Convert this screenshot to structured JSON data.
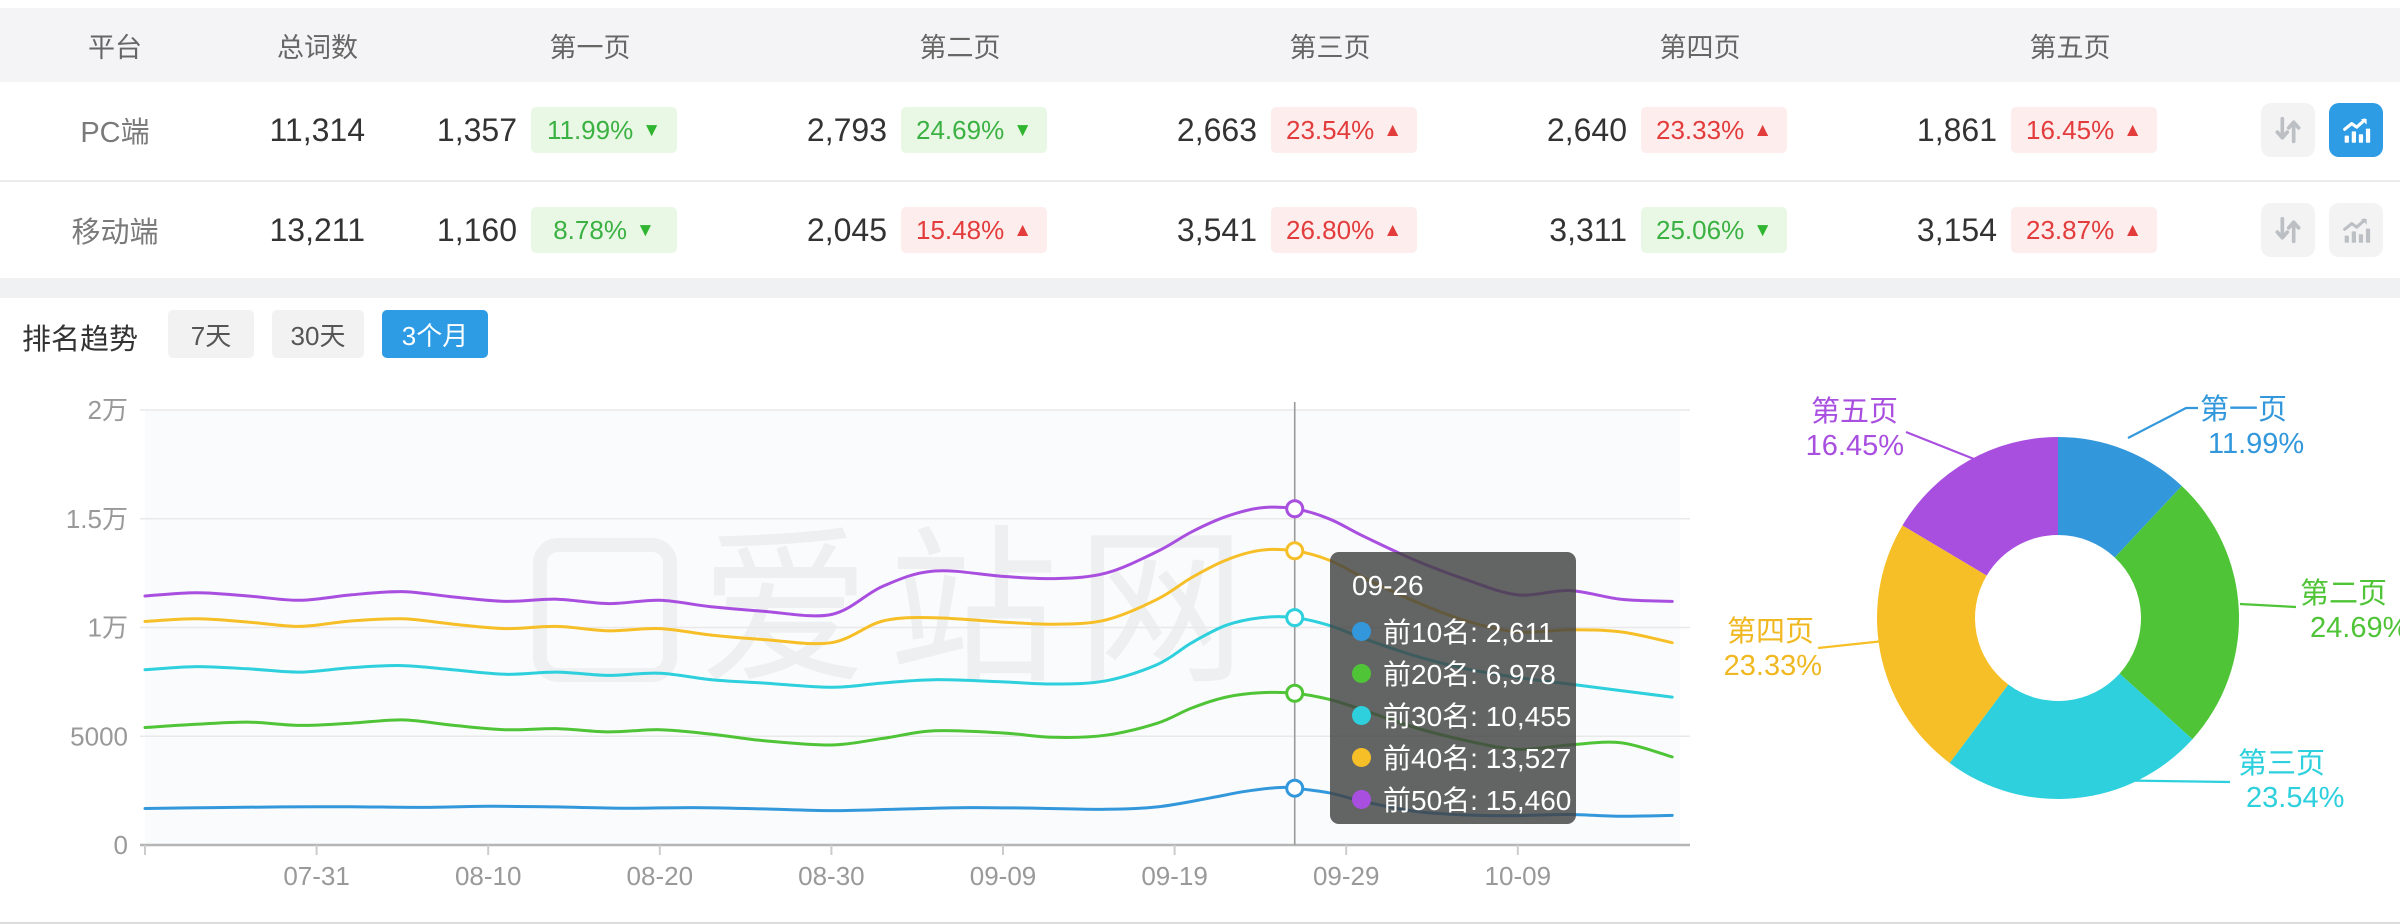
{
  "table": {
    "columns": [
      "平台",
      "总词数",
      "第一页",
      "第二页",
      "第三页",
      "第四页",
      "第五页"
    ],
    "rows": [
      {
        "platform": "PC端",
        "total": "11,314",
        "selected": true,
        "pages": [
          {
            "count": "1,357",
            "pct": "11.99%",
            "arrow": "▼",
            "trend": "down"
          },
          {
            "count": "2,793",
            "pct": "24.69%",
            "arrow": "▼",
            "trend": "down"
          },
          {
            "count": "2,663",
            "pct": "23.54%",
            "arrow": "▲",
            "trend": "up"
          },
          {
            "count": "2,640",
            "pct": "23.33%",
            "arrow": "▲",
            "trend": "up"
          },
          {
            "count": "1,861",
            "pct": "16.45%",
            "arrow": "▲",
            "trend": "up"
          }
        ]
      },
      {
        "platform": "移动端",
        "total": "13,211",
        "selected": false,
        "pages": [
          {
            "count": "1,160",
            "pct": "8.78%",
            "arrow": "▼",
            "trend": "down"
          },
          {
            "count": "2,045",
            "pct": "15.48%",
            "arrow": "▲",
            "trend": "up"
          },
          {
            "count": "3,541",
            "pct": "26.80%",
            "arrow": "▲",
            "trend": "up"
          },
          {
            "count": "3,311",
            "pct": "25.06%",
            "arrow": "▼",
            "trend": "down"
          },
          {
            "count": "3,154",
            "pct": "23.87%",
            "arrow": "▲",
            "trend": "up"
          }
        ]
      }
    ]
  },
  "trend": {
    "title": "排名趋势",
    "tabs": [
      {
        "label": "7天",
        "active": false
      },
      {
        "label": "30天",
        "active": false
      },
      {
        "label": "3个月",
        "active": true
      }
    ]
  },
  "tooltip": {
    "title": "09-26",
    "rows": [
      {
        "text": "前10名: 2,611"
      },
      {
        "text": "前20名: 6,978"
      },
      {
        "text": "前30名: 10,455"
      },
      {
        "text": "前40名: 13,527"
      },
      {
        "text": "前50名: 15,460"
      }
    ]
  },
  "watermark": "爱站网",
  "colors": {
    "accent_blue": "#2d9ce5",
    "badge_green_text": "#3cb143",
    "badge_green_bg": "#e9f7e5",
    "badge_red_text": "#e23c3c",
    "badge_red_bg": "#fdeded",
    "series_blue": "#3398db",
    "series_green": "#4fc437",
    "series_cyan": "#2dd0dc",
    "series_yellow": "#f7bf27",
    "series_purple": "#a94fe0",
    "axis_text": "#999999",
    "gridline": "#e9e9e9"
  },
  "chart_data": [
    {
      "type": "line",
      "title": "排名趋势 3个月",
      "xlabel": "",
      "ylabel": "",
      "ylim": [
        0,
        20000
      ],
      "grid": true,
      "yticks": [
        {
          "v": 0,
          "label": "0"
        },
        {
          "v": 5000,
          "label": "5000"
        },
        {
          "v": 10000,
          "label": "1万"
        },
        {
          "v": 15000,
          "label": "1.5万"
        },
        {
          "v": 20000,
          "label": "2万"
        }
      ],
      "xticks": [
        {
          "day": 10,
          "label": "07-31"
        },
        {
          "day": 20,
          "label": "08-10"
        },
        {
          "day": 30,
          "label": "08-20"
        },
        {
          "day": 40,
          "label": "08-30"
        },
        {
          "day": 50,
          "label": "09-09"
        },
        {
          "day": 60,
          "label": "09-19"
        },
        {
          "day": 70,
          "label": "09-29"
        },
        {
          "day": 80,
          "label": "10-09"
        }
      ],
      "crosshair_day": 67,
      "crosshair_date": "09-26",
      "series": [
        {
          "name": "前10名",
          "color": "#3398db",
          "marker_value": 2611,
          "points": [
            [
              0,
              1680
            ],
            [
              4,
              1720
            ],
            [
              8,
              1750
            ],
            [
              12,
              1760
            ],
            [
              16,
              1730
            ],
            [
              20,
              1780
            ],
            [
              24,
              1750
            ],
            [
              28,
              1690
            ],
            [
              32,
              1720
            ],
            [
              36,
              1660
            ],
            [
              40,
              1580
            ],
            [
              44,
              1650
            ],
            [
              48,
              1720
            ],
            [
              52,
              1690
            ],
            [
              56,
              1640
            ],
            [
              59,
              1750
            ],
            [
              62,
              2150
            ],
            [
              64,
              2450
            ],
            [
              66,
              2640
            ],
            [
              67,
              2611
            ],
            [
              69,
              2400
            ],
            [
              71,
              2000
            ],
            [
              74,
              1550
            ],
            [
              77,
              1380
            ],
            [
              80,
              1350
            ],
            [
              83,
              1400
            ],
            [
              86,
              1320
            ],
            [
              89,
              1360
            ]
          ]
        },
        {
          "name": "前20名",
          "color": "#4fc437",
          "marker_value": 6978,
          "points": [
            [
              0,
              5400
            ],
            [
              3,
              5550
            ],
            [
              6,
              5650
            ],
            [
              9,
              5500
            ],
            [
              12,
              5600
            ],
            [
              15,
              5750
            ],
            [
              18,
              5500
            ],
            [
              21,
              5300
            ],
            [
              24,
              5350
            ],
            [
              27,
              5200
            ],
            [
              30,
              5300
            ],
            [
              33,
              5100
            ],
            [
              36,
              4800
            ],
            [
              40,
              4600
            ],
            [
              43,
              4900
            ],
            [
              46,
              5250
            ],
            [
              50,
              5150
            ],
            [
              53,
              4950
            ],
            [
              56,
              5050
            ],
            [
              59,
              5600
            ],
            [
              61,
              6300
            ],
            [
              63,
              6800
            ],
            [
              65,
              7000
            ],
            [
              67,
              6978
            ],
            [
              69,
              6700
            ],
            [
              71,
              6200
            ],
            [
              74,
              5400
            ],
            [
              77,
              4800
            ],
            [
              80,
              4400
            ],
            [
              83,
              4600
            ],
            [
              86,
              4700
            ],
            [
              89,
              4050
            ]
          ]
        },
        {
          "name": "前30名",
          "color": "#2dd0dc",
          "marker_value": 10455,
          "points": [
            [
              0,
              8060
            ],
            [
              3,
              8200
            ],
            [
              6,
              8100
            ],
            [
              9,
              7950
            ],
            [
              12,
              8150
            ],
            [
              15,
              8250
            ],
            [
              18,
              8050
            ],
            [
              21,
              7850
            ],
            [
              24,
              7950
            ],
            [
              27,
              7800
            ],
            [
              30,
              7900
            ],
            [
              33,
              7600
            ],
            [
              36,
              7450
            ],
            [
              40,
              7250
            ],
            [
              43,
              7450
            ],
            [
              46,
              7600
            ],
            [
              50,
              7500
            ],
            [
              53,
              7400
            ],
            [
              56,
              7550
            ],
            [
              59,
              8300
            ],
            [
              61,
              9300
            ],
            [
              63,
              10100
            ],
            [
              65,
              10450
            ],
            [
              67,
              10455
            ],
            [
              69,
              10100
            ],
            [
              71,
              9500
            ],
            [
              74,
              8700
            ],
            [
              77,
              8100
            ],
            [
              80,
              7700
            ],
            [
              83,
              7400
            ],
            [
              86,
              7100
            ],
            [
              89,
              6800
            ]
          ]
        },
        {
          "name": "前40名",
          "color": "#f7bf27",
          "marker_value": 13527,
          "points": [
            [
              0,
              10280
            ],
            [
              3,
              10400
            ],
            [
              6,
              10250
            ],
            [
              9,
              10050
            ],
            [
              12,
              10300
            ],
            [
              15,
              10400
            ],
            [
              18,
              10150
            ],
            [
              21,
              9950
            ],
            [
              24,
              10050
            ],
            [
              27,
              9850
            ],
            [
              30,
              9950
            ],
            [
              33,
              9650
            ],
            [
              36,
              9450
            ],
            [
              40,
              9300
            ],
            [
              43,
              10300
            ],
            [
              46,
              10450
            ],
            [
              50,
              10250
            ],
            [
              53,
              10150
            ],
            [
              56,
              10350
            ],
            [
              59,
              11300
            ],
            [
              61,
              12300
            ],
            [
              63,
              13100
            ],
            [
              65,
              13550
            ],
            [
              67,
              13527
            ],
            [
              69,
              13100
            ],
            [
              71,
              12300
            ],
            [
              74,
              11200
            ],
            [
              77,
              10300
            ],
            [
              80,
              9800
            ],
            [
              83,
              9900
            ],
            [
              86,
              9800
            ],
            [
              89,
              9300
            ]
          ]
        },
        {
          "name": "前50名",
          "color": "#a94fe0",
          "marker_value": 15460,
          "points": [
            [
              0,
              11450
            ],
            [
              3,
              11600
            ],
            [
              6,
              11450
            ],
            [
              9,
              11250
            ],
            [
              12,
              11500
            ],
            [
              15,
              11650
            ],
            [
              18,
              11400
            ],
            [
              21,
              11200
            ],
            [
              24,
              11300
            ],
            [
              27,
              11100
            ],
            [
              30,
              11250
            ],
            [
              33,
              10950
            ],
            [
              36,
              10750
            ],
            [
              40,
              10600
            ],
            [
              43,
              11900
            ],
            [
              46,
              12600
            ],
            [
              50,
              12350
            ],
            [
              53,
              12250
            ],
            [
              56,
              12500
            ],
            [
              59,
              13500
            ],
            [
              61,
              14400
            ],
            [
              63,
              15100
            ],
            [
              65,
              15500
            ],
            [
              67,
              15460
            ],
            [
              69,
              15000
            ],
            [
              71,
              14200
            ],
            [
              74,
              13100
            ],
            [
              77,
              12200
            ],
            [
              80,
              11500
            ],
            [
              83,
              11700
            ],
            [
              86,
              11300
            ],
            [
              89,
              11200
            ]
          ]
        }
      ]
    },
    {
      "type": "pie",
      "labels": [
        "第一页",
        "第二页",
        "第三页",
        "第四页",
        "第五页"
      ],
      "values": [
        11.99,
        24.69,
        23.54,
        23.33,
        16.45
      ],
      "pct_labels": [
        "11.99%",
        "24.69%",
        "23.54%",
        "23.33%",
        "16.45%"
      ],
      "colors": [
        "#3398db",
        "#4fc437",
        "#2dd0dc",
        "#f7bf27",
        "#a94fe0"
      ],
      "inner_radius_ratio": 0.46,
      "start_angle_deg": 0,
      "legend_position": "outside-callout"
    }
  ]
}
